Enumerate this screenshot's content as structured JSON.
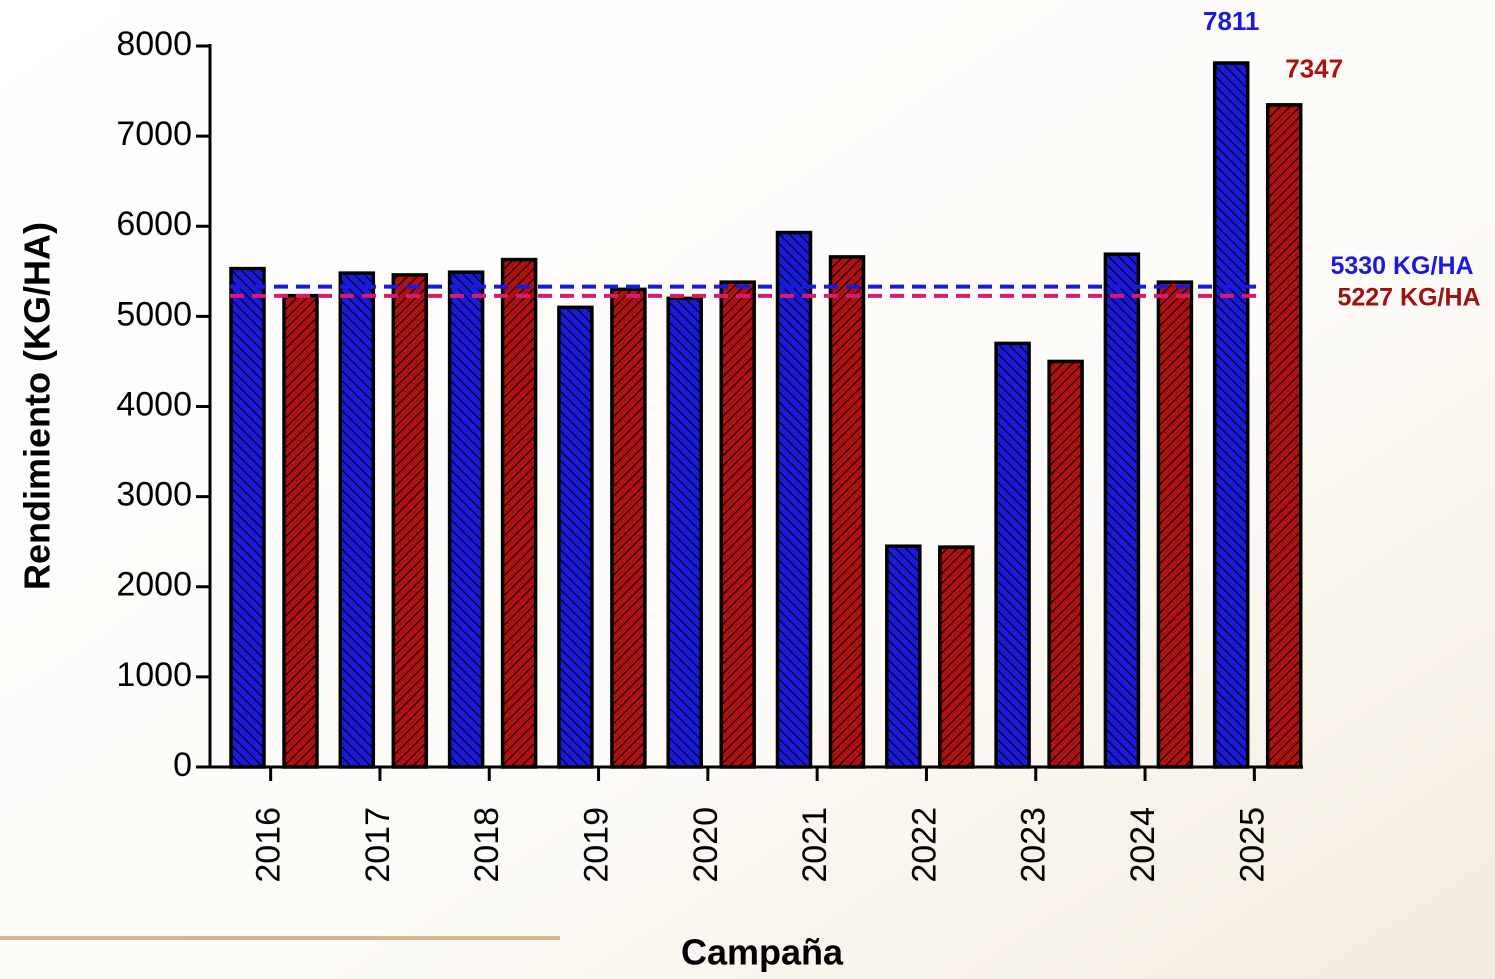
{
  "chart_data": {
    "type": "bar",
    "y_label": "Rendimiento (KG/HA)",
    "x_label": "Campaña",
    "categories": [
      "2016",
      "2017",
      "2018",
      "2019",
      "2020",
      "2021",
      "2022",
      "2023",
      "2024",
      "2025"
    ],
    "series": [
      {
        "color": "#1a1adc",
        "values": [
          5530,
          5480,
          5490,
          5100,
          5200,
          5930,
          2450,
          4700,
          5690,
          7811
        ],
        "value_labels": [
          null,
          null,
          null,
          null,
          null,
          null,
          null,
          null,
          null,
          "7811"
        ]
      },
      {
        "color": "#b01010",
        "values": [
          5230,
          5460,
          5630,
          5300,
          5380,
          5660,
          2440,
          4500,
          5380,
          7347
        ],
        "value_labels": [
          null,
          null,
          null,
          null,
          null,
          null,
          null,
          null,
          null,
          "7347"
        ]
      }
    ],
    "reference_lines": [
      {
        "value": 5330,
        "label": "5330 KG/HA",
        "color": "#1a1adc"
      },
      {
        "value": 5227,
        "label": "5227 KG/HA",
        "color": "#d81b70",
        "label_color": "#a01010"
      }
    ],
    "ylim": [
      0,
      8000
    ],
    "yticks": [
      0,
      1000,
      2000,
      3000,
      4000,
      5000,
      6000,
      7000,
      8000
    ],
    "hatch": true
  }
}
